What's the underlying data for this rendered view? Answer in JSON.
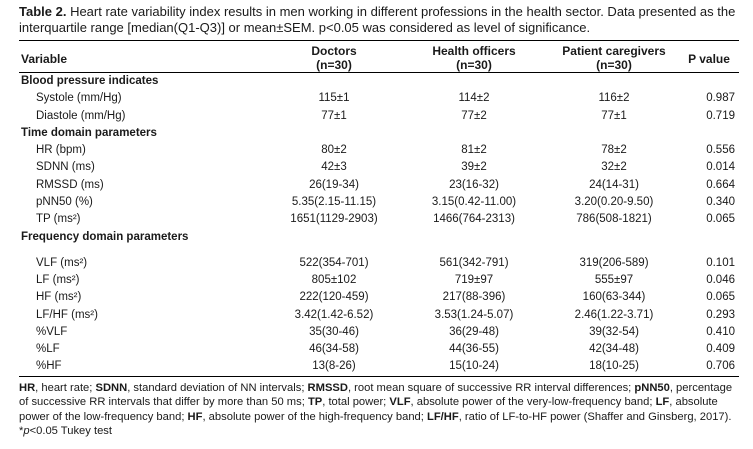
{
  "caption": {
    "label": "Table 2.",
    "text": " Heart rate variability index results in men working in different professions in the health sector. Data presented as the interquartile range [median(Q1-Q3)] or mean±SEM. p<0.05 was considered as level of significance."
  },
  "header": {
    "variable": "Variable",
    "doctors": "Doctors",
    "doctors_n": "(n=30)",
    "health_officers": "Health officers",
    "health_officers_n": "(n=30)",
    "patient_caregivers": "Patient caregivers",
    "patient_caregivers_n": "(n=30)",
    "p_value": "P value"
  },
  "rows": [
    {
      "type": "section",
      "label": "Blood pressure indicates"
    },
    {
      "type": "data",
      "label": "Systole (mm/Hg)",
      "doctors": "115±1",
      "health_officers": "114±2",
      "patient_caregivers": "116±2",
      "p": "0.987"
    },
    {
      "type": "data",
      "label": "Diastole (mm/Hg)",
      "doctors": "77±1",
      "health_officers": "77±2",
      "patient_caregivers": "77±1",
      "p": "0.719"
    },
    {
      "type": "section",
      "label": "Time domain parameters"
    },
    {
      "type": "data",
      "label": "HR (bpm)",
      "doctors": "80±2",
      "health_officers": "81±2",
      "patient_caregivers": "78±2",
      "p": "0.556"
    },
    {
      "type": "data",
      "label": "SDNN (ms)",
      "doctors": "42±3",
      "health_officers": "39±2",
      "patient_caregivers": "32±2",
      "p": "0.014"
    },
    {
      "type": "data",
      "label": "RMSSD (ms)",
      "doctors": "26(19-34)",
      "health_officers": "23(16-32)",
      "patient_caregivers": "24(14-31)",
      "p": "0.664"
    },
    {
      "type": "data",
      "label": "pNN50 (%)",
      "doctors": "5.35(2.15-11.15)",
      "health_officers": "3.15(0.42-11.00)",
      "patient_caregivers": "3.20(0.20-9.50)",
      "p": "0.340"
    },
    {
      "type": "data",
      "label": "TP (ms²)",
      "doctors": "1651(1129-2903)",
      "health_officers": "1466(764-2313)",
      "patient_caregivers": "786(508-1821)",
      "p": "0.065"
    },
    {
      "type": "section",
      "label": "Frequency domain parameters"
    },
    {
      "type": "data",
      "tall": true,
      "label": "VLF (ms²)",
      "doctors": "522(354-701)",
      "health_officers": "561(342-791)",
      "patient_caregivers": "319(206-589)",
      "p": "0.101"
    },
    {
      "type": "data",
      "label": "LF (ms²)",
      "doctors": "805±102",
      "health_officers": "719±97",
      "patient_caregivers": "555±97",
      "p": "0.046"
    },
    {
      "type": "data",
      "label": "HF (ms²)",
      "doctors": "222(120-459)",
      "health_officers": "217(88-396)",
      "patient_caregivers": "160(63-344)",
      "p": "0.065"
    },
    {
      "type": "data",
      "label": "LF/HF (ms²)",
      "doctors": "3.42(1.42-6.52)",
      "health_officers": "3.53(1.24-5.07)",
      "patient_caregivers": "2.46(1.22-3.71)",
      "p": "0.293"
    },
    {
      "type": "data",
      "label": "%VLF",
      "doctors": "35(30-46)",
      "health_officers": "36(29-48)",
      "patient_caregivers": "39(32-54)",
      "p": "0.410"
    },
    {
      "type": "data",
      "label": "%LF",
      "doctors": "46(34-58)",
      "health_officers": "44(36-55)",
      "patient_caregivers": "42(34-48)",
      "p": "0.409"
    },
    {
      "type": "data",
      "label": "%HF",
      "doctors": "13(8-26)",
      "health_officers": "15(10-24)",
      "patient_caregivers": "18(10-25)",
      "p": "0.706"
    }
  ],
  "footnote": [
    {
      "b": "HR"
    },
    {
      "t": ", heart rate; "
    },
    {
      "b": "SDNN"
    },
    {
      "t": ", standard deviation of NN intervals; "
    },
    {
      "b": "RMSSD"
    },
    {
      "t": ", root mean square of successive RR interval differences; "
    },
    {
      "b": "pNN50"
    },
    {
      "t": ", percentage of successive RR intervals that differ by more than 50 ms; "
    },
    {
      "b": "TP"
    },
    {
      "t": ", total power; "
    },
    {
      "b": "VLF"
    },
    {
      "t": ", absolute power of the very-low-frequency band; "
    },
    {
      "b": "LF"
    },
    {
      "t": ", absolute power of the low-frequency band; "
    },
    {
      "b": "HF"
    },
    {
      "t": ", absolute power of the high-frequency band; "
    },
    {
      "b": "LF/HF"
    },
    {
      "t": ", ratio of LF-to-HF power (Shaffer and Ginsberg, 2017). *"
    },
    {
      "i": "p"
    },
    {
      "t": "<0.05 Tukey test"
    }
  ]
}
